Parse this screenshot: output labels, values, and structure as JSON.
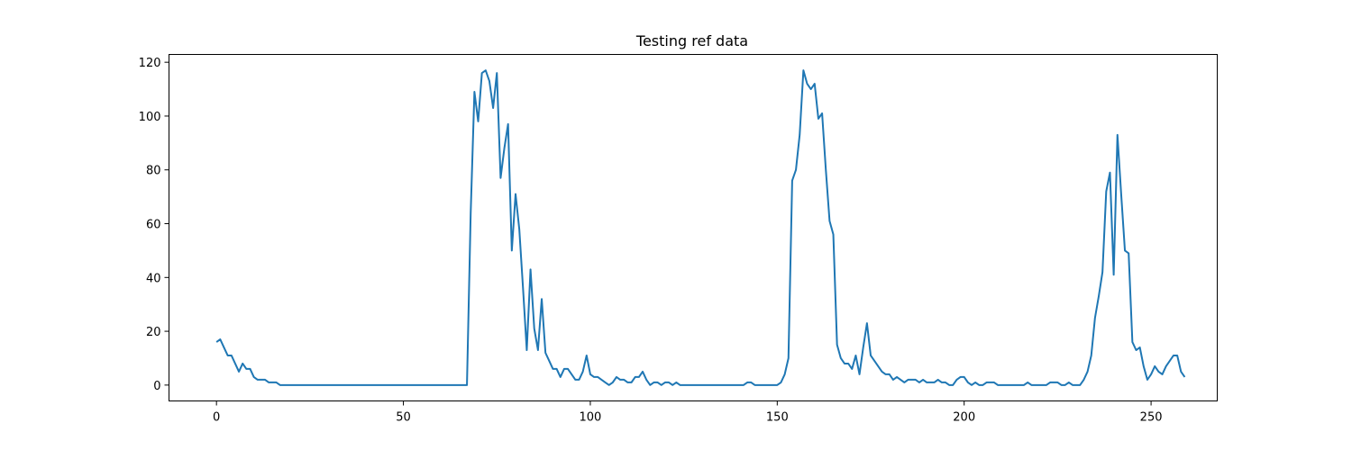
{
  "chart_data": {
    "type": "line",
    "title": "Testing ref data",
    "xlabel": "",
    "ylabel": "",
    "xlim": [
      -12.7,
      267.7
    ],
    "ylim": [
      -5.9,
      122.9
    ],
    "x_ticks": [
      0,
      50,
      100,
      150,
      200,
      250
    ],
    "y_ticks": [
      0,
      20,
      40,
      60,
      80,
      100,
      120
    ],
    "grid": false,
    "legend": "none",
    "colors": {
      "series": "#1f77b4"
    },
    "series": [
      {
        "values": [
          16,
          17,
          14,
          11,
          11,
          8,
          5,
          8,
          6,
          6,
          3,
          2,
          2,
          2,
          1,
          1,
          1,
          0,
          0,
          0,
          0,
          0,
          0,
          0,
          0,
          0,
          0,
          0,
          0,
          0,
          0,
          0,
          0,
          0,
          0,
          0,
          0,
          0,
          0,
          0,
          0,
          0,
          0,
          0,
          0,
          0,
          0,
          0,
          0,
          0,
          0,
          0,
          0,
          0,
          0,
          0,
          0,
          0,
          0,
          0,
          0,
          0,
          0,
          0,
          0,
          0,
          0,
          0,
          64,
          109,
          98,
          116,
          117,
          113,
          103,
          116,
          77,
          88,
          97,
          50,
          71,
          58,
          36,
          13,
          43,
          21,
          13,
          32,
          12,
          9,
          6,
          6,
          3,
          6,
          6,
          4,
          2,
          2,
          5,
          11,
          4,
          3,
          3,
          2,
          1,
          0,
          1,
          3,
          2,
          2,
          1,
          1,
          3,
          3,
          5,
          2,
          0,
          1,
          1,
          0,
          1,
          1,
          0,
          1,
          0,
          0,
          0,
          0,
          0,
          0,
          0,
          0,
          0,
          0,
          0,
          0,
          0,
          0,
          0,
          0,
          0,
          0,
          1,
          1,
          0,
          0,
          0,
          0,
          0,
          0,
          0,
          1,
          4,
          10,
          76,
          80,
          93,
          117,
          112,
          110,
          112,
          99,
          101,
          80,
          61,
          56,
          15,
          10,
          8,
          8,
          6,
          11,
          4,
          14,
          23,
          11,
          9,
          7,
          5,
          4,
          4,
          2,
          3,
          2,
          1,
          2,
          2,
          2,
          1,
          2,
          1,
          1,
          1,
          2,
          1,
          1,
          0,
          0,
          2,
          3,
          3,
          1,
          0,
          1,
          0,
          0,
          1,
          1,
          1,
          0,
          0,
          0,
          0,
          0,
          0,
          0,
          0,
          1,
          0,
          0,
          0,
          0,
          0,
          1,
          1,
          1,
          0,
          0,
          1,
          0,
          0,
          0,
          2,
          5,
          11,
          25,
          33,
          42,
          72,
          79,
          41,
          93,
          71,
          50,
          49,
          16,
          13,
          14,
          7,
          2,
          4,
          7,
          5,
          4,
          7,
          9,
          11,
          11,
          5,
          3
        ]
      }
    ]
  }
}
